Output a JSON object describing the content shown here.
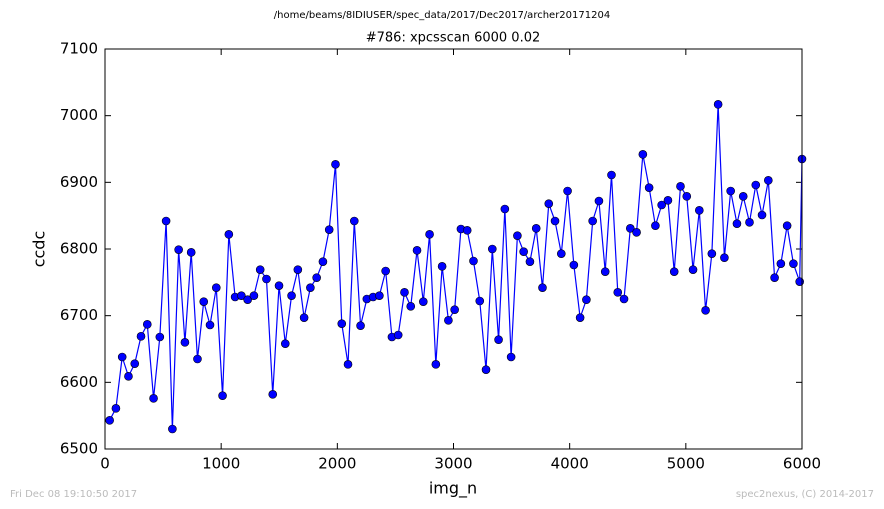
{
  "chart_data": {
    "type": "line",
    "suptitle": "/home/beams/8IDIUSER/spec_data/2017/Dec2017/archer20171204",
    "title": "#786: xpcsscan 6000 0.02",
    "xlabel": "img_n",
    "ylabel": "ccdc",
    "footer_left": "Fri Dec 08 19:10:50 2017",
    "footer_right": "spec2nexus, (C) 2014-2017",
    "x": [
      40,
      94,
      148,
      202,
      256,
      310,
      364,
      418,
      472,
      526,
      580,
      634,
      688,
      742,
      796,
      850,
      904,
      958,
      1012,
      1066,
      1120,
      1174,
      1228,
      1282,
      1336,
      1390,
      1444,
      1498,
      1552,
      1606,
      1660,
      1714,
      1768,
      1822,
      1876,
      1930,
      1984,
      2038,
      2092,
      2146,
      2200,
      2254,
      2308,
      2362,
      2416,
      2470,
      2524,
      2578,
      2632,
      2686,
      2740,
      2794,
      2848,
      2902,
      2956,
      3010,
      3064,
      3118,
      3172,
      3226,
      3280,
      3334,
      3388,
      3442,
      3496,
      3550,
      3604,
      3658,
      3712,
      3766,
      3820,
      3874,
      3928,
      3982,
      4036,
      4090,
      4144,
      4198,
      4252,
      4306,
      4360,
      4414,
      4468,
      4522,
      4576,
      4630,
      4684,
      4738,
      4792,
      4846,
      4900,
      4954,
      5008,
      5062,
      5116,
      5170,
      5224,
      5278,
      5332,
      5386,
      5440,
      5494,
      5548,
      5602,
      5656,
      5710,
      5764,
      5818,
      5872,
      5926,
      5980,
      6000
    ],
    "series": [
      {
        "name": "ccdc",
        "color": "#0000ff",
        "marker_color": "#0000ff",
        "values": [
          6543,
          6561,
          6638,
          6609,
          6628,
          6669,
          6687,
          6576,
          6668,
          6842,
          6530,
          6799,
          6660,
          6795,
          6635,
          6721,
          6686,
          6742,
          6580,
          6822,
          6728,
          6730,
          6724,
          6730,
          6769,
          6755,
          6582,
          6745,
          6658,
          6730,
          6769,
          6697,
          6742,
          6757,
          6781,
          6829,
          6927,
          6688,
          6627,
          6842,
          6685,
          6725,
          6728,
          6730,
          6767,
          6668,
          6671,
          6735,
          6714,
          6798,
          6721,
          6822,
          6627,
          6774,
          6693,
          6709,
          6830,
          6828,
          6782,
          6722,
          6619,
          6800,
          6664,
          6860,
          6638,
          6820,
          6796,
          6781,
          6831,
          6742,
          6868,
          6842,
          6793,
          6887,
          6776,
          6697,
          6724,
          6842,
          6872,
          6766,
          6911,
          6735,
          6725,
          6831,
          6825,
          6942,
          6892,
          6835,
          6866,
          6873,
          6766,
          6894,
          6879,
          6769,
          6858,
          6708,
          6793,
          7017,
          6787,
          6887,
          6838,
          6879,
          6840,
          6896,
          6851,
          6903,
          6757,
          6778,
          6835,
          6778,
          6751,
          6935
        ]
      }
    ],
    "xlim": [
      0,
      6000
    ],
    "xticks": [
      0,
      1000,
      2000,
      3000,
      4000,
      5000,
      6000
    ],
    "ylim": [
      6500,
      7100
    ],
    "yticks": [
      6500,
      6600,
      6700,
      6800,
      6900,
      7000,
      7100
    ],
    "grid": false
  }
}
